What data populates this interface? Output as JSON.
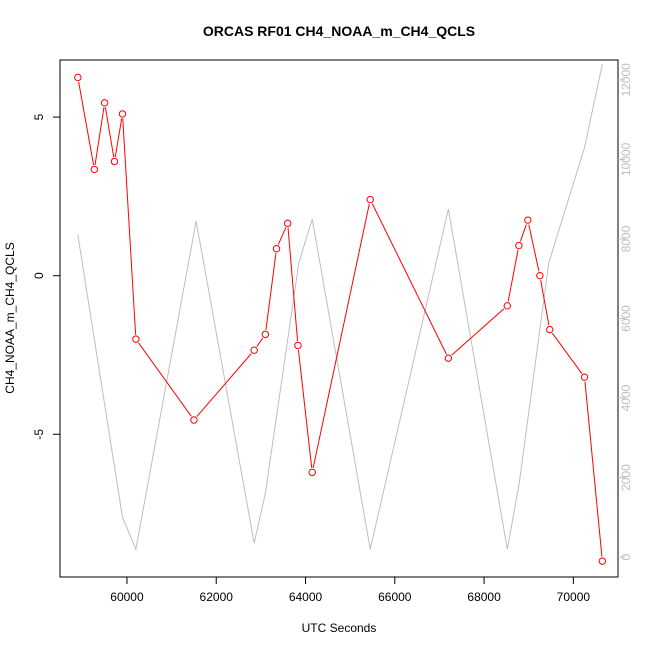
{
  "chart_data": {
    "type": "line",
    "title": "ORCAS RF01 CH4_NOAA_m_CH4_QCLS",
    "xlabel": "UTC Seconds",
    "ylabel": "CH4_NOAA_m_CH4_QCLS",
    "xlim": [
      58500,
      71000
    ],
    "ylim": [
      -9.5,
      6.8
    ],
    "y2lim": [
      -500,
      12500
    ],
    "x_ticks": [
      60000,
      62000,
      64000,
      66000,
      68000,
      70000
    ],
    "y_ticks": [
      -5,
      0,
      5
    ],
    "y2_ticks": [
      0,
      2000,
      4000,
      6000,
      8000,
      10000,
      12000
    ],
    "grid": false,
    "series": [
      {
        "axis": "left",
        "color": "#ff0000",
        "markers": "open-circle",
        "x": [
          58900,
          59270,
          59500,
          59720,
          59900,
          60200,
          61500,
          62850,
          63100,
          63350,
          63600,
          63830,
          64150,
          65450,
          67200,
          68520,
          68780,
          68980,
          69250,
          69470,
          70250,
          70650
        ],
        "values": [
          6.25,
          3.35,
          5.45,
          3.6,
          5.1,
          -2.0,
          -4.55,
          -2.35,
          -1.85,
          0.85,
          1.65,
          -2.2,
          -6.2,
          2.4,
          -2.6,
          -0.95,
          0.95,
          1.75,
          0.0,
          -1.7,
          -3.2,
          -9.0
        ]
      },
      {
        "axis": "right",
        "color": "#bebebe",
        "markers": "none",
        "x": [
          58900,
          59900,
          60200,
          61550,
          62850,
          63100,
          63850,
          64150,
          65450,
          67200,
          68520,
          68780,
          69450,
          70250,
          70650
        ],
        "values": [
          8100,
          1000,
          200,
          8450,
          350,
          1600,
          7400,
          8500,
          200,
          8750,
          200,
          1800,
          7400,
          10300,
          12400
        ]
      }
    ]
  }
}
